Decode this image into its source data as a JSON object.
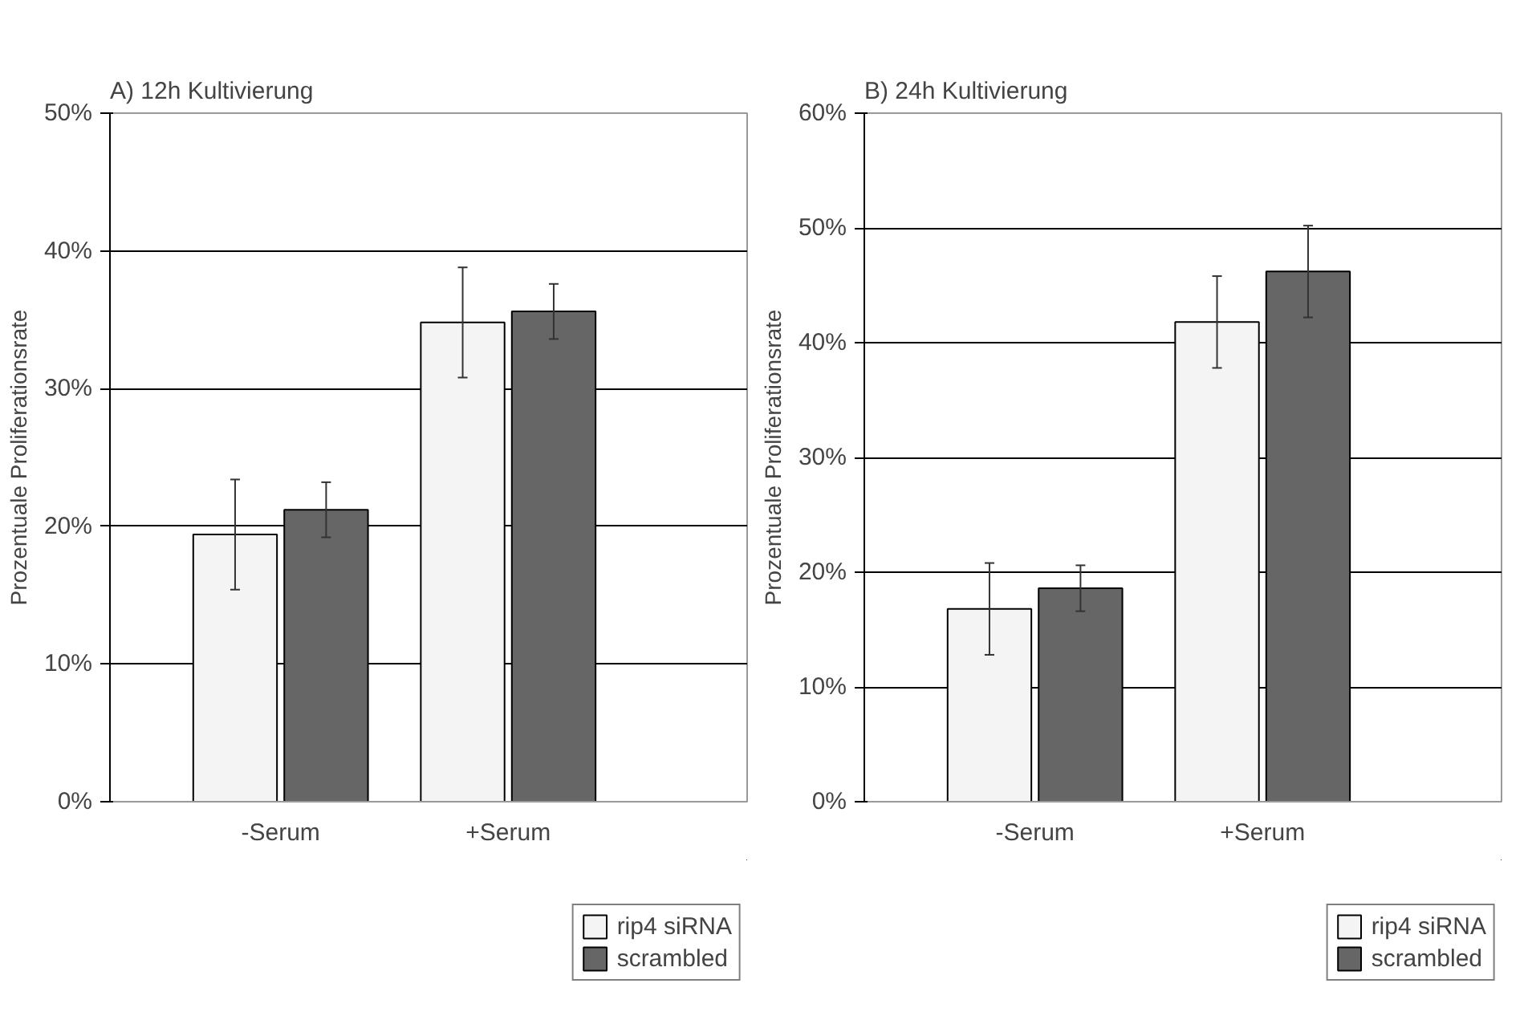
{
  "chart_data": [
    {
      "type": "bar",
      "title": "A)  12h Kultivierung",
      "ylabel": "Prozentuale Proliferationsrate",
      "categories": [
        "-Serum",
        "+Serum"
      ],
      "series": [
        {
          "name": "rip4 siRNA",
          "color": "#f4f4f4",
          "values": [
            19.4,
            34.8
          ],
          "errors": [
            4,
            4
          ]
        },
        {
          "name": "scrambled",
          "color": "#666666",
          "values": [
            21.2,
            35.6
          ],
          "errors": [
            2,
            2
          ]
        }
      ],
      "ylim": [
        0,
        50
      ],
      "yticks": [
        {
          "value": 0,
          "label": "0%"
        },
        {
          "value": 10,
          "label": "10%"
        },
        {
          "value": 20,
          "label": "20%"
        },
        {
          "value": 30,
          "label": "30%"
        },
        {
          "value": 40,
          "label": "40%"
        },
        {
          "value": 50,
          "label": "50%"
        }
      ],
      "grid": "y",
      "legend": "bottom right"
    },
    {
      "type": "bar",
      "title": "B)  24h Kultivierung",
      "ylabel": "Prozentuale Proliferationsrate",
      "categories": [
        "-Serum",
        "+Serum"
      ],
      "series": [
        {
          "name": "rip4 siRNA",
          "color": "#f4f4f4",
          "values": [
            16.8,
            41.8
          ],
          "errors": [
            4,
            4
          ]
        },
        {
          "name": "scrambled",
          "color": "#666666",
          "values": [
            18.6,
            46.2
          ],
          "errors": [
            2,
            4
          ]
        }
      ],
      "ylim": [
        0,
        60
      ],
      "yticks": [
        {
          "value": 0,
          "label": "0%"
        },
        {
          "value": 10,
          "label": "10%"
        },
        {
          "value": 20,
          "label": "20%"
        },
        {
          "value": 30,
          "label": "30%"
        },
        {
          "value": 40,
          "label": "40%"
        },
        {
          "value": 50,
          "label": "50%"
        },
        {
          "value": 60,
          "label": "60%"
        }
      ],
      "grid": "y",
      "legend": "bottom right"
    }
  ]
}
